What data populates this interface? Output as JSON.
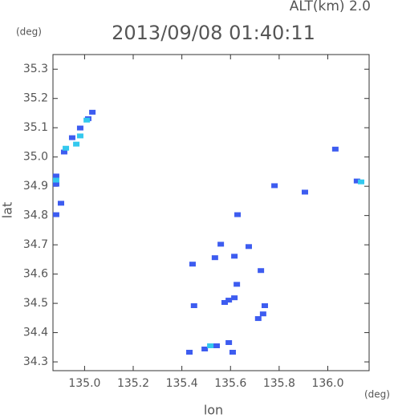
{
  "chart_data": {
    "type": "scatter",
    "title": "2013/09/08 01:40:11",
    "altitude_label": "ALT(km) 2.0",
    "y_unit": "(deg)",
    "x_unit": "(deg)",
    "x_label": "lon",
    "y_label": "lat",
    "xlim": [
      134.87,
      136.17
    ],
    "ylim": [
      34.27,
      35.35
    ],
    "xticks": [
      {
        "value": 135.0,
        "label": "135.0"
      },
      135.2,
      135.4,
      135.6,
      135.8,
      {
        "value": 136.0,
        "label": "136.0"
      }
    ],
    "yticks": [
      34.3,
      34.4,
      34.5,
      34.6,
      34.7,
      34.8,
      34.9,
      {
        "value": 35.0,
        "label": "35.0"
      },
      35.1,
      35.2,
      35.3
    ],
    "series": [
      {
        "color": "#3d5cf0",
        "x": [
          134.916,
          134.949,
          134.982,
          135.015,
          135.032,
          134.883,
          134.883,
          134.903,
          134.883,
          136.12,
          136.031,
          135.781,
          135.906,
          135.629,
          135.444,
          135.45,
          135.56,
          135.616,
          135.675,
          135.536,
          135.626,
          135.593,
          135.576,
          135.616,
          135.741,
          135.734,
          135.714,
          135.609,
          135.725,
          135.431,
          135.494,
          135.543,
          135.593
        ],
        "y": [
          35.017,
          35.066,
          35.099,
          35.131,
          35.153,
          34.907,
          34.935,
          34.842,
          34.803,
          34.918,
          35.027,
          34.902,
          34.88,
          34.803,
          34.634,
          34.492,
          34.702,
          34.661,
          34.694,
          34.656,
          34.565,
          34.511,
          34.503,
          34.519,
          34.492,
          34.464,
          34.448,
          34.333,
          34.612,
          34.333,
          34.344,
          34.355,
          34.366
        ]
      },
      {
        "color": "#33c8ee",
        "x": [
          134.982,
          134.966,
          135.009,
          134.923,
          134.883,
          136.137,
          135.517
        ],
        "y": [
          35.072,
          35.044,
          35.126,
          35.03,
          34.921,
          34.915,
          34.355
        ]
      }
    ]
  }
}
